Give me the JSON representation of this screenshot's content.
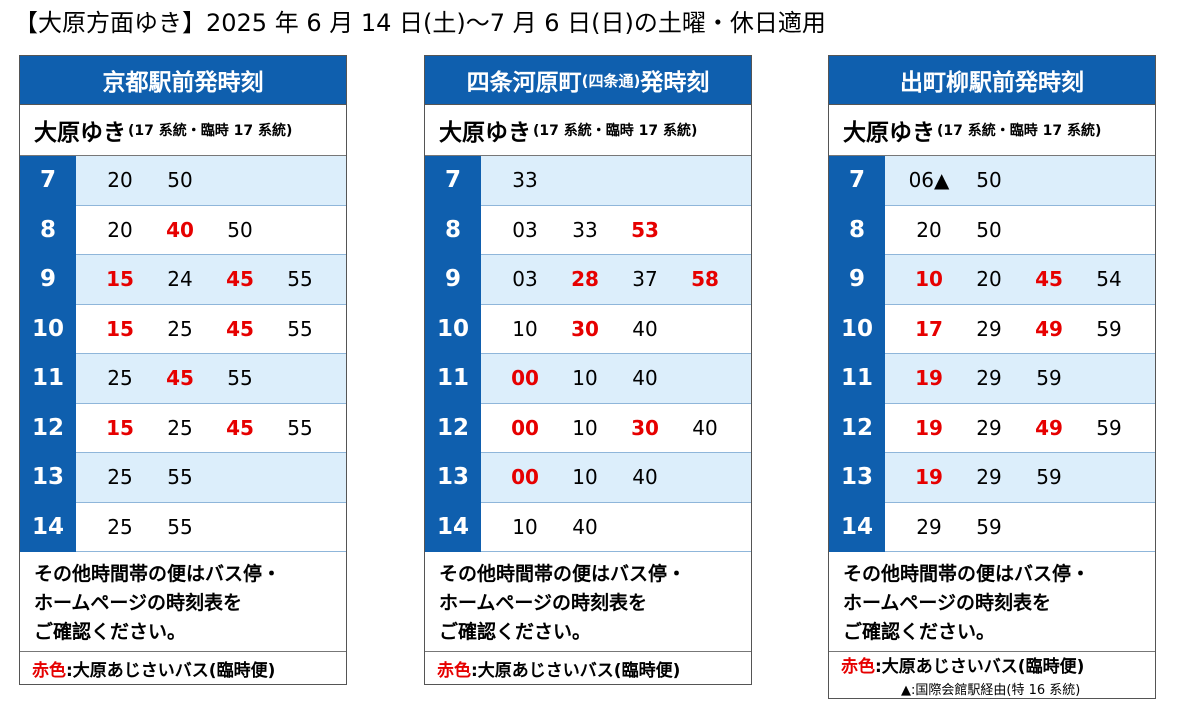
{
  "header": "【大原方面ゆき】2025 年 6 月 14 日(土)〜7 月 6 日(日)の土曜・休日適用",
  "colors": {
    "blue": "#0f5fae",
    "light_blue": "#dceefb",
    "red": "#e60000"
  },
  "panels": [
    {
      "title": "京都駅前発時刻",
      "destination": "大原ゆき",
      "routes": "(17 系統・臨時 17 系統)",
      "rows": [
        {
          "hour": "7",
          "mins": [
            {
              "t": "20",
              "red": false
            },
            {
              "t": "50",
              "red": false
            }
          ]
        },
        {
          "hour": "8",
          "mins": [
            {
              "t": "20",
              "red": false
            },
            {
              "t": "40",
              "red": true
            },
            {
              "t": "50",
              "red": false
            }
          ]
        },
        {
          "hour": "9",
          "mins": [
            {
              "t": "15",
              "red": true
            },
            {
              "t": "24",
              "red": false
            },
            {
              "t": "45",
              "red": true
            },
            {
              "t": "55",
              "red": false
            }
          ]
        },
        {
          "hour": "10",
          "mins": [
            {
              "t": "15",
              "red": true
            },
            {
              "t": "25",
              "red": false
            },
            {
              "t": "45",
              "red": true
            },
            {
              "t": "55",
              "red": false
            }
          ]
        },
        {
          "hour": "11",
          "mins": [
            {
              "t": "25",
              "red": false
            },
            {
              "t": "45",
              "red": true
            },
            {
              "t": "55",
              "red": false
            }
          ]
        },
        {
          "hour": "12",
          "mins": [
            {
              "t": "15",
              "red": true
            },
            {
              "t": "25",
              "red": false
            },
            {
              "t": "45",
              "red": true
            },
            {
              "t": "55",
              "red": false
            }
          ]
        },
        {
          "hour": "13",
          "mins": [
            {
              "t": "25",
              "red": false
            },
            {
              "t": "55",
              "red": false
            }
          ]
        },
        {
          "hour": "14",
          "mins": [
            {
              "t": "25",
              "red": false
            },
            {
              "t": "55",
              "red": false
            }
          ]
        }
      ],
      "note_lines": [
        "その他時間帯の便はバス停・",
        "ホームページの時刻表を",
        "ご確認ください。"
      ],
      "legend_red": "赤色",
      "legend_text": ":大原あじさいバス(臨時便)",
      "legend_sub": ""
    },
    {
      "title": "四条河原町",
      "title_small": "(四条通)",
      "title_suffix": "発時刻",
      "destination": "大原ゆき",
      "routes": "(17 系統・臨時 17 系統)",
      "rows": [
        {
          "hour": "7",
          "mins": [
            {
              "t": "33",
              "red": false
            }
          ]
        },
        {
          "hour": "8",
          "mins": [
            {
              "t": "03",
              "red": false
            },
            {
              "t": "33",
              "red": false
            },
            {
              "t": "53",
              "red": true
            }
          ]
        },
        {
          "hour": "9",
          "mins": [
            {
              "t": "03",
              "red": false
            },
            {
              "t": "28",
              "red": true
            },
            {
              "t": "37",
              "red": false
            },
            {
              "t": "58",
              "red": true
            }
          ]
        },
        {
          "hour": "10",
          "mins": [
            {
              "t": "10",
              "red": false
            },
            {
              "t": "30",
              "red": true
            },
            {
              "t": "40",
              "red": false
            }
          ]
        },
        {
          "hour": "11",
          "mins": [
            {
              "t": "00",
              "red": true
            },
            {
              "t": "10",
              "red": false
            },
            {
              "t": "40",
              "red": false
            }
          ]
        },
        {
          "hour": "12",
          "mins": [
            {
              "t": "00",
              "red": true
            },
            {
              "t": "10",
              "red": false
            },
            {
              "t": "30",
              "red": true
            },
            {
              "t": "40",
              "red": false
            }
          ]
        },
        {
          "hour": "13",
          "mins": [
            {
              "t": "00",
              "red": true
            },
            {
              "t": "10",
              "red": false
            },
            {
              "t": "40",
              "red": false
            }
          ]
        },
        {
          "hour": "14",
          "mins": [
            {
              "t": "10",
              "red": false
            },
            {
              "t": "40",
              "red": false
            }
          ]
        }
      ],
      "note_lines": [
        "その他時間帯の便はバス停・",
        "ホームページの時刻表を",
        "ご確認ください。"
      ],
      "legend_red": "赤色",
      "legend_text": ":大原あじさいバス(臨時便)",
      "legend_sub": ""
    },
    {
      "title": "出町柳駅前発時刻",
      "destination": "大原ゆき",
      "routes": "(17 系統・臨時 17 系統)",
      "rows": [
        {
          "hour": "7",
          "mins": [
            {
              "t": "06▲",
              "red": false
            },
            {
              "t": "50",
              "red": false
            }
          ]
        },
        {
          "hour": "8",
          "mins": [
            {
              "t": "20",
              "red": false
            },
            {
              "t": "50",
              "red": false
            }
          ]
        },
        {
          "hour": "9",
          "mins": [
            {
              "t": "10",
              "red": true
            },
            {
              "t": "20",
              "red": false
            },
            {
              "t": "45",
              "red": true
            },
            {
              "t": "54",
              "red": false
            }
          ]
        },
        {
          "hour": "10",
          "mins": [
            {
              "t": "17",
              "red": true
            },
            {
              "t": "29",
              "red": false
            },
            {
              "t": "49",
              "red": true
            },
            {
              "t": "59",
              "red": false
            }
          ]
        },
        {
          "hour": "11",
          "mins": [
            {
              "t": "19",
              "red": true
            },
            {
              "t": "29",
              "red": false
            },
            {
              "t": "59",
              "red": false
            }
          ]
        },
        {
          "hour": "12",
          "mins": [
            {
              "t": "19",
              "red": true
            },
            {
              "t": "29",
              "red": false
            },
            {
              "t": "49",
              "red": true
            },
            {
              "t": "59",
              "red": false
            }
          ]
        },
        {
          "hour": "13",
          "mins": [
            {
              "t": "19",
              "red": true
            },
            {
              "t": "29",
              "red": false
            },
            {
              "t": "59",
              "red": false
            }
          ]
        },
        {
          "hour": "14",
          "mins": [
            {
              "t": "29",
              "red": false
            },
            {
              "t": "59",
              "red": false
            }
          ]
        }
      ],
      "note_lines": [
        "その他時間帯の便はバス停・",
        "ホームページの時刻表を",
        "ご確認ください。"
      ],
      "legend_red": "赤色",
      "legend_text": ":大原あじさいバス(臨時便)",
      "legend_sub": "▲:国際会館駅経由(特 16 系統)"
    }
  ]
}
